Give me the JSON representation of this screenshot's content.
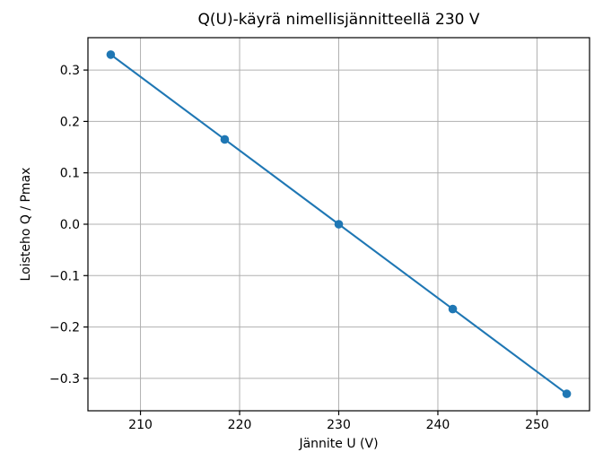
{
  "chart_data": {
    "type": "line",
    "title": "Q(U)-käyrä nimellisjännitteellä 230 V",
    "xlabel": "Jännite U (V)",
    "ylabel": "Loisteho Q / Pmax",
    "series": [
      {
        "name": "Q(U)-käyrä",
        "x": [
          207.0,
          218.5,
          230.0,
          241.5,
          253.0
        ],
        "y": [
          0.33,
          0.165,
          0.0,
          -0.165,
          -0.33
        ],
        "color": "#1f77b4",
        "marker": "circle"
      }
    ],
    "xlim": [
      204.7,
      255.3
    ],
    "ylim": [
      -0.363,
      0.363
    ],
    "xticks": [
      {
        "value": 210,
        "label": "210"
      },
      {
        "value": 220,
        "label": "220"
      },
      {
        "value": 230,
        "label": "230"
      },
      {
        "value": 240,
        "label": "240"
      },
      {
        "value": 250,
        "label": "250"
      }
    ],
    "yticks": [
      {
        "value": 0.3,
        "label": "0.3"
      },
      {
        "value": 0.2,
        "label": "0.2"
      },
      {
        "value": 0.1,
        "label": "0.1"
      },
      {
        "value": 0.0,
        "label": "0.0"
      },
      {
        "value": -0.1,
        "label": "−0.1"
      },
      {
        "value": -0.2,
        "label": "−0.2"
      },
      {
        "value": -0.3,
        "label": "−0.3"
      }
    ],
    "grid": true,
    "legend": null,
    "colors": {
      "line": "#1f77b4",
      "grid": "#b0b0b0",
      "spine": "#000000",
      "tick": "#000000",
      "text": "#000000",
      "background": "#ffffff"
    }
  }
}
